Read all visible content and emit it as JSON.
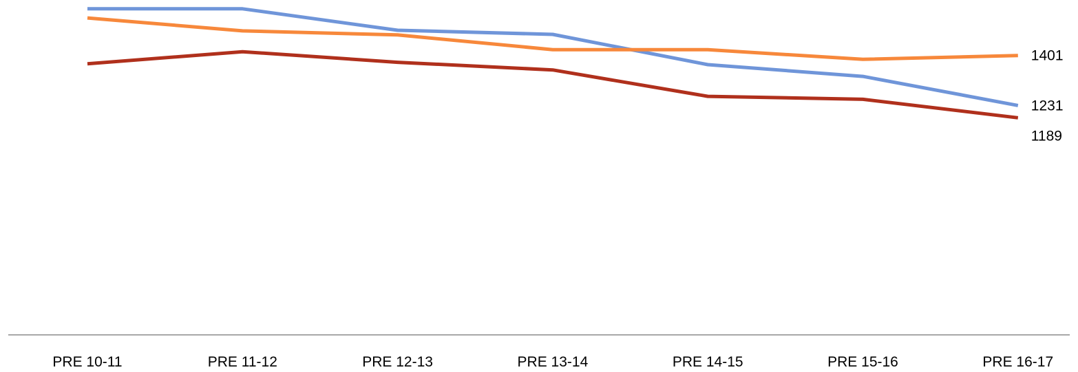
{
  "chart_data": {
    "type": "line",
    "categories": [
      "PRE 10-11",
      "PRE 11-12",
      "PRE 12-13",
      "PRE 13-14",
      "PRE 14-15",
      "PRE 15-16",
      "PRE 16-17"
    ],
    "series": [
      {
        "color": "#6f95d9",
        "values": [
          1560,
          1560,
          1487,
          1473,
          1370,
          1330,
          1231
        ],
        "end_label": "1231"
      },
      {
        "color": "#f7883b",
        "values": [
          1529,
          1485,
          1471,
          1421,
          1421,
          1388,
          1401
        ],
        "end_label": "1401"
      },
      {
        "color": "#b0301c",
        "values": [
          1373,
          1414,
          1378,
          1352,
          1262,
          1252,
          1189
        ],
        "end_label": "1189"
      }
    ],
    "title": "",
    "xlabel": "",
    "ylabel": "",
    "ylim": [
      450,
      1590
    ],
    "grid": false,
    "legend": "none",
    "axis_color": "#8c8c8c"
  }
}
